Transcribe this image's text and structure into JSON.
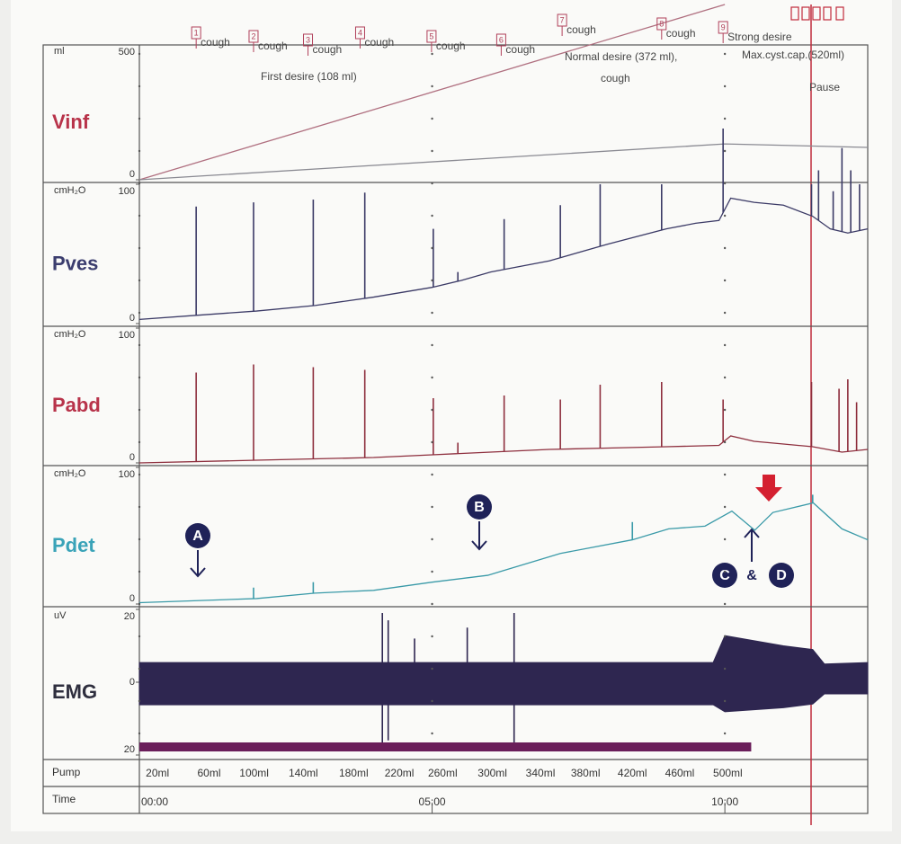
{
  "chart_data": [
    {
      "type": "line",
      "name": "Vinf",
      "label_color": "#b8334a",
      "unit": "ml",
      "ylim": [
        0,
        500
      ],
      "yticks": [
        0,
        500
      ],
      "series": [
        {
          "color": "#b07080",
          "x": [
            0,
            10
          ],
          "values": [
            0,
            650
          ]
        },
        {
          "color": "#8a8a92",
          "x": [
            0,
            10,
            12.44
          ],
          "values": [
            0,
            133,
            120
          ]
        }
      ]
    },
    {
      "type": "line",
      "name": "Pves",
      "label_color": "#3b3d6e",
      "unit": "cmH₂O",
      "ylim": [
        0,
        100
      ],
      "yticks": [
        0,
        100
      ],
      "series": [
        {
          "color": "#3b3a66",
          "x": [
            0,
            1,
            2,
            3,
            4,
            5,
            5.5,
            6,
            7,
            8,
            9,
            9.5,
            9.9,
            10.1,
            10.5,
            11,
            11.5,
            11.8,
            12.1,
            12.44
          ],
          "values": [
            3,
            6,
            9,
            13,
            19,
            26,
            31,
            37,
            45,
            57,
            68,
            72,
            74,
            90,
            87,
            85,
            77,
            68,
            65,
            68
          ],
          "spikes": {
            "x": [
              0.97,
              1.95,
              2.97,
              3.85,
              5.02,
              5.44,
              6.23,
              7.19,
              7.87,
              8.92,
              9.97,
              11.48,
              11.6,
              11.85,
              12.0,
              12.15,
              12.3
            ],
            "values": [
              84,
              87,
              89,
              94,
              68,
              37,
              75,
              85,
              100,
              100,
              140,
              100,
              110,
              95,
              126,
              110,
              100
            ]
          }
        }
      ]
    },
    {
      "type": "line",
      "name": "Pabd",
      "label_color": "#b8334a",
      "unit": "cmH₂O",
      "ylim": [
        0,
        100
      ],
      "yticks": [
        0,
        100
      ],
      "series": [
        {
          "color": "#8e2f3e",
          "x": [
            0,
            2,
            4,
            5,
            6,
            7,
            8,
            9,
            9.9,
            10.1,
            10.5,
            11,
            11.5,
            12,
            12.44
          ],
          "values": [
            0,
            2,
            4,
            6,
            8,
            10,
            11,
            12,
            13,
            20,
            16,
            14,
            12,
            8,
            10
          ],
          "spikes": {
            "x": [
              0.97,
              1.95,
              2.97,
              3.85,
              5.02,
              5.44,
              6.23,
              7.19,
              7.87,
              8.92,
              9.97,
              11.48,
              11.95,
              12.1,
              12.25
            ],
            "values": [
              67,
              73,
              71,
              69,
              48,
              15,
              50,
              47,
              58,
              60,
              47,
              60,
              55,
              62,
              45
            ]
          }
        }
      ]
    },
    {
      "type": "line",
      "name": "Pdet",
      "label_color": "#3aa3b8",
      "unit": "cmH₂O",
      "ylim": [
        0,
        100
      ],
      "yticks": [
        0,
        100
      ],
      "series": [
        {
          "color": "#3a9aa8",
          "x": [
            0,
            2,
            3,
            4,
            5,
            5.95,
            7.19,
            8.42,
            9.04,
            9.66,
            10.12,
            10.51,
            10.82,
            11.51,
            12,
            12.44
          ],
          "values": [
            1,
            4,
            8,
            10,
            16,
            21,
            37,
            47,
            55,
            57,
            68,
            54,
            67,
            74,
            55,
            47
          ],
          "spikes": {
            "x": [
              1.95,
              2.97,
              8.42,
              11.5
            ],
            "values": [
              12,
              16,
              60,
              80
            ]
          }
        }
      ]
    },
    {
      "type": "area",
      "name": "EMG",
      "label_color": "#2e2e3e",
      "unit": "uV",
      "ylim": [
        -20,
        20
      ],
      "yticks": [
        {
          "value": -20,
          "label": "20"
        },
        0,
        20
      ],
      "series": [
        {
          "color": "#2e2650",
          "x": [
            0,
            9.8,
            10,
            11,
            11.5,
            11.7,
            12.44
          ],
          "values": [
            5.4,
            5.4,
            12.8,
            10,
            9,
            5,
            5.4
          ],
          "spikes": {
            "x": [
              4.15,
              4.25,
              4.7,
              5.6,
              6.4
            ],
            "values": [
              19,
              17,
              12,
              15,
              19
            ]
          }
        },
        {
          "color": "#2e2650",
          "x": [
            0,
            9.8,
            10,
            11,
            11.5,
            11.7,
            12.44
          ],
          "values": [
            -6.2,
            -6.2,
            -8.1,
            -7,
            -6,
            -3.2,
            -3.2
          ],
          "spikes": {
            "x": [
              4.15,
              4.25,
              6.4
            ],
            "values": [
              -18,
              -16,
              -17
            ]
          }
        }
      ]
    }
  ],
  "time_axis": {
    "label": "Time",
    "xlim": [
      0,
      12.44
    ],
    "xticks": [
      {
        "value": 0,
        "label": "00:00"
      },
      {
        "value": 5,
        "label": "05:00"
      },
      {
        "value": 10,
        "label": "10:00"
      }
    ]
  },
  "pump": {
    "label": "Pump",
    "bar": [
      0,
      10.45
    ],
    "color": "#6a1e5a",
    "labels": [
      "20ml",
      "60ml",
      "100ml",
      "140ml",
      "180ml",
      "220ml",
      "260ml",
      "300ml",
      "340ml",
      "380ml",
      "420ml",
      "460ml",
      "500ml"
    ],
    "x": [
      0.31,
      1.19,
      1.96,
      2.8,
      3.66,
      4.44,
      5.18,
      6.03,
      6.85,
      7.62,
      8.42,
      9.23,
      10.05
    ]
  },
  "events": {
    "labels": [
      "1",
      "2",
      "3",
      "4",
      "5",
      "6",
      "7",
      "8",
      "9"
    ],
    "texts": [
      "cough",
      "cough",
      "cough",
      "cough",
      "cough",
      "cough",
      "cough",
      "cough",
      "Strong desire"
    ],
    "x": [
      0.97,
      1.95,
      2.88,
      3.77,
      4.99,
      6.18,
      7.22,
      8.92,
      9.97
    ]
  },
  "annotations": {
    "first": "First desire (108 ml)",
    "normal": "Normal desire (372 ml),",
    "cough": "cough",
    "max": "Max.cyst.cap.(520ml)",
    "pause": "Pause",
    "a": "A",
    "b": "B",
    "c": "C",
    "amp": "&",
    "d": "D"
  }
}
